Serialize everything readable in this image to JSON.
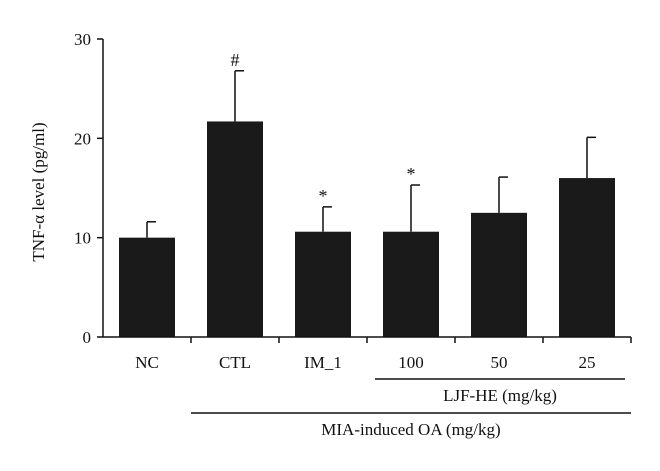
{
  "chart_data": {
    "type": "bar",
    "ylabel": "TNF-α level (pg/ml)",
    "ylim": [
      0,
      30
    ],
    "yticks": [
      0,
      10,
      20,
      30
    ],
    "grid": false,
    "categories": [
      "NC",
      "CTL",
      "IM_1",
      "100",
      "50",
      "25"
    ],
    "values": [
      10,
      21.7,
      10.6,
      10.6,
      12.5,
      16.0
    ],
    "errors": [
      1.6,
      5.1,
      2.5,
      4.7,
      3.6,
      4.1
    ],
    "annotations": [
      "",
      "#",
      "*",
      "*",
      "",
      ""
    ],
    "bar_color": "#1a1a1a",
    "groups": [
      {
        "label": "LJF-HE (mg/kg)",
        "from": 3,
        "to": 5
      },
      {
        "label": "MIA-induced OA (mg/kg)",
        "from": 1,
        "to": 5
      }
    ]
  }
}
